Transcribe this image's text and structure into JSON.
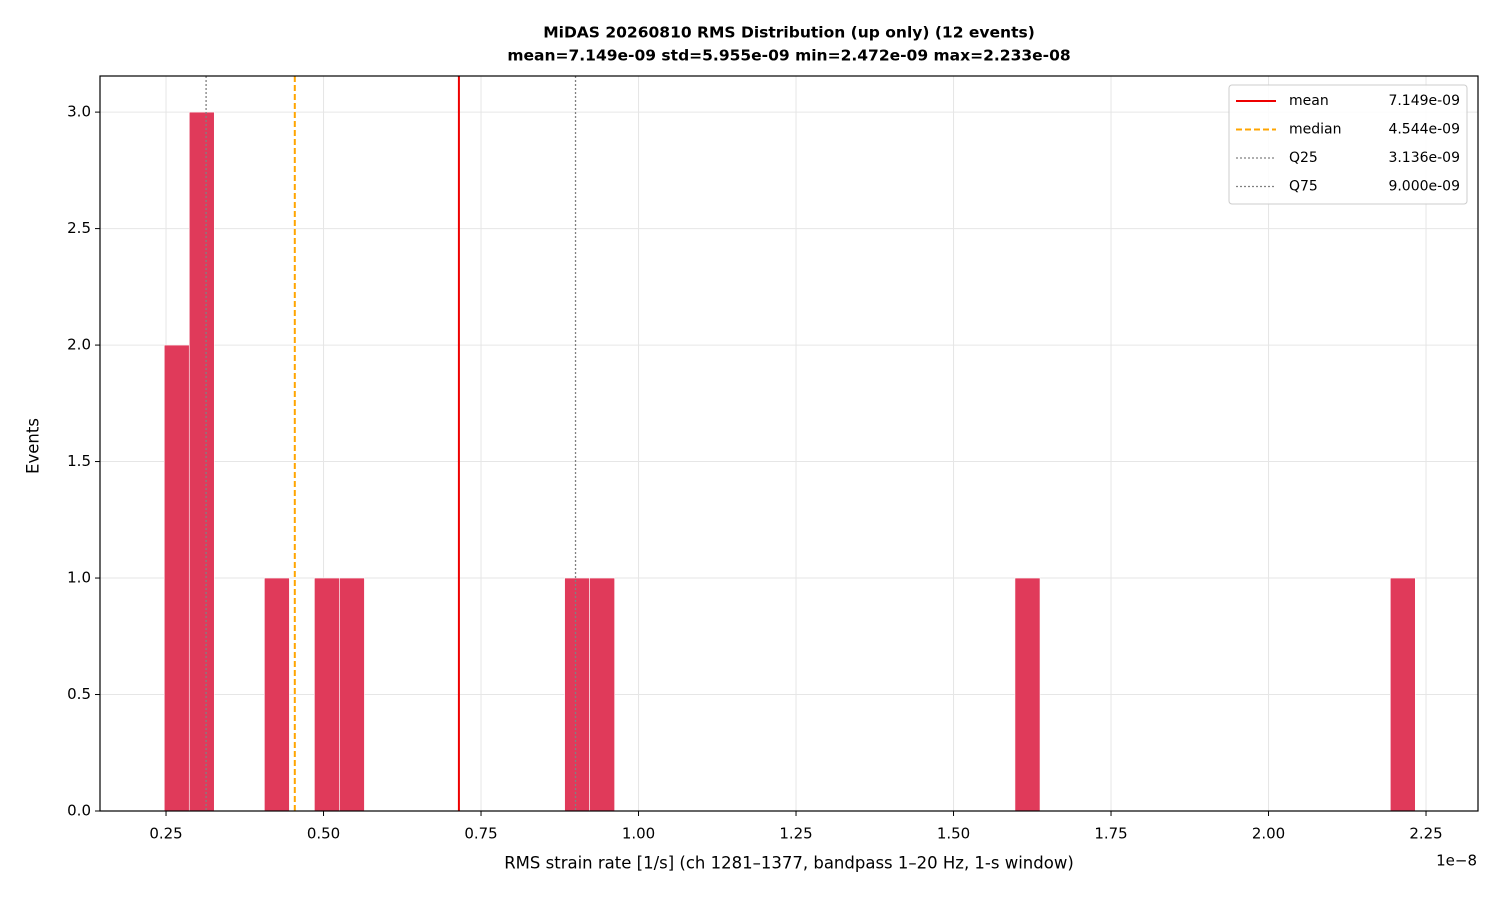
{
  "chart_data": {
    "type": "histogram",
    "title": "MiDAS 20260810  RMS Distribution  (up only)  (12 events)",
    "subtitle": "mean=7.149e-09  std=5.955e-09  min=2.472e-09  max=2.233e-08",
    "x_label": "RMS strain rate [1/s]  (ch 1281–1377, bandpass 1–20 Hz, 1-s window)",
    "y_label": "Events",
    "x_offset_label": "1e−8",
    "color": "#e03a5a",
    "grid": true,
    "legend_position": "upper right",
    "bins": [
      0.2472,
      0.2869,
      0.3266,
      0.3663,
      0.4061,
      0.4458,
      0.4855,
      0.5252,
      0.5649,
      0.6046,
      0.6444,
      0.6841,
      0.7238,
      0.7635,
      0.8032,
      0.8429,
      0.8827,
      0.9224,
      0.9621,
      1.0018,
      1.0415,
      1.0812,
      1.121,
      1.1607,
      1.2004,
      1.2401,
      1.2798,
      1.3195,
      1.3592,
      1.399,
      1.4387,
      1.4784,
      1.5181,
      1.5578,
      1.5975,
      1.6373,
      1.677,
      1.7167,
      1.7564,
      1.7961,
      1.8358,
      1.8756,
      1.9153,
      1.955,
      1.9947,
      2.0344,
      2.0741,
      2.1139,
      2.1536,
      2.1933,
      2.233
    ],
    "values": [
      2,
      3,
      0,
      0,
      1,
      0,
      1,
      1,
      0,
      0,
      0,
      0,
      0,
      0,
      0,
      0,
      1,
      1,
      0,
      0,
      0,
      0,
      0,
      0,
      0,
      0,
      0,
      0,
      0,
      0,
      0,
      0,
      0,
      0,
      1,
      0,
      0,
      0,
      0,
      0,
      0,
      0,
      0,
      0,
      0,
      0,
      0,
      0,
      0,
      1
    ],
    "reference_lines": [
      {
        "name": "mean",
        "label": "7.149e-09",
        "value": 0.7149,
        "color": "#ee0000",
        "style": "solid"
      },
      {
        "name": "median",
        "label": "4.544e-09",
        "value": 0.4544,
        "color": "#ffa500",
        "style": "dashed"
      },
      {
        "name": "Q25",
        "label": "3.136e-09",
        "value": 0.3136,
        "color": "#808080",
        "style": "dotted"
      },
      {
        "name": "Q75",
        "label": "9.000e-09",
        "value": 0.9,
        "color": "#808080",
        "style": "dotted"
      }
    ],
    "xlim": [
      0.1452,
      2.3325
    ],
    "ylim": [
      0,
      3.155
    ],
    "xticks": [
      {
        "value": 0.25,
        "label": "0.25"
      },
      {
        "value": 0.5,
        "label": "0.50"
      },
      0.75,
      {
        "value": 1,
        "label": "1.00"
      },
      1.25,
      {
        "value": 1.5,
        "label": "1.50"
      },
      1.75,
      {
        "value": 2,
        "label": "2.00"
      },
      2.25
    ],
    "yticks": [
      {
        "value": 0,
        "label": "0.0"
      },
      {
        "value": 0.5,
        "label": "0.5"
      },
      {
        "value": 1,
        "label": "1.0"
      },
      1.5,
      {
        "value": 2,
        "label": "2.0"
      },
      2.5,
      {
        "value": 3,
        "label": "3.0"
      }
    ]
  }
}
